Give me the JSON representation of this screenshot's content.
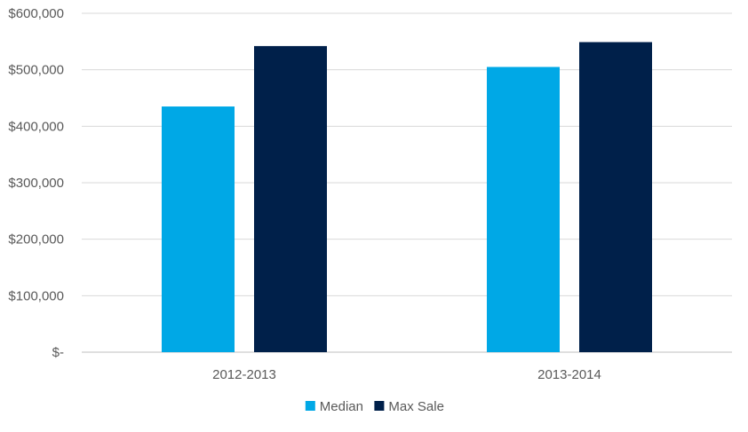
{
  "chart_data": {
    "type": "bar",
    "title": "",
    "xlabel": "",
    "ylabel": "",
    "categories": [
      "2012-2013",
      "2013-2014"
    ],
    "series": [
      {
        "name": "Median",
        "color": "#00a8e6",
        "values": [
          435000,
          505000
        ]
      },
      {
        "name": "Max Sale",
        "color": "#00204a",
        "values": [
          542000,
          549000
        ]
      }
    ],
    "ylim": [
      0,
      600000
    ],
    "yticks": [
      0,
      100000,
      200000,
      300000,
      400000,
      500000,
      600000
    ],
    "ytick_labels": [
      "$-",
      "$100,000",
      "$200,000",
      "$300,000",
      "$400,000",
      "$500,000",
      "$600,000"
    ],
    "grid": true,
    "legend_position": "bottom"
  }
}
